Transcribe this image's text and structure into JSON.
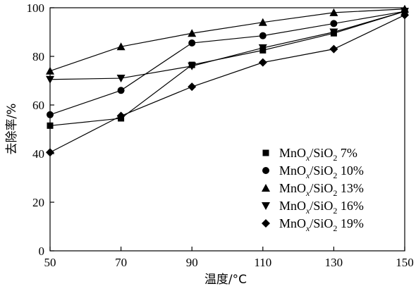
{
  "chart_data": {
    "type": "line",
    "title": "",
    "xlabel": "温度/°C",
    "ylabel": "去除率/%",
    "x": [
      50,
      70,
      90,
      110,
      130,
      150
    ],
    "xlim": [
      50,
      150
    ],
    "ylim": [
      0,
      100
    ],
    "x_ticks": [
      50,
      70,
      90,
      110,
      130,
      150
    ],
    "y_ticks": [
      0,
      20,
      40,
      60,
      80,
      100
    ],
    "grid": false,
    "legend_position": "bottom-right",
    "series": [
      {
        "name": "MnOx/SiO2 7%",
        "legend_parts": [
          "MnO",
          "x",
          "/SiO",
          "2",
          " 7%"
        ],
        "marker": "square",
        "values": [
          51.5,
          54.5,
          76.5,
          82.5,
          89.5,
          98.5
        ]
      },
      {
        "name": "MnOx/SiO2 10%",
        "legend_parts": [
          "MnO",
          "x",
          "/SiO",
          "2",
          " 10%"
        ],
        "marker": "circle",
        "values": [
          56,
          66,
          85.5,
          88.5,
          93.5,
          98.5
        ]
      },
      {
        "name": "MnOx/SiO2 13%",
        "legend_parts": [
          "MnO",
          "x",
          "/SiO",
          "2",
          " 13%"
        ],
        "marker": "triangle-up",
        "values": [
          74,
          84,
          89.5,
          94,
          98,
          99.5
        ]
      },
      {
        "name": "MnOx/SiO2 16%",
        "legend_parts": [
          "MnO",
          "x",
          "/SiO",
          "2",
          " 16%"
        ],
        "marker": "triangle-down",
        "values": [
          70.5,
          71,
          76,
          83.5,
          90,
          98.5
        ]
      },
      {
        "name": "MnOx/SiO2 19%",
        "legend_parts": [
          "MnO",
          "x",
          "/SiO",
          "2",
          " 19%"
        ],
        "marker": "diamond",
        "values": [
          40.5,
          55.5,
          67.5,
          77.5,
          83,
          97
        ]
      }
    ]
  }
}
